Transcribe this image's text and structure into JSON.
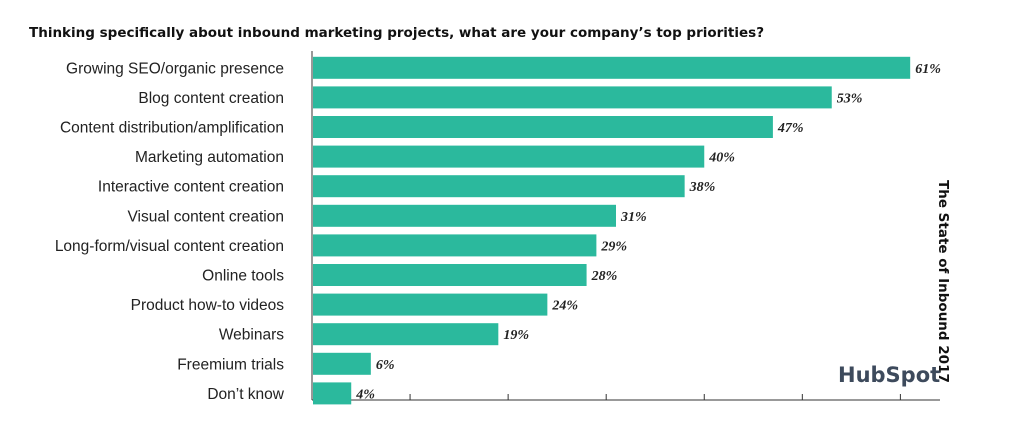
{
  "chart_data": {
    "type": "bar",
    "orientation": "horizontal",
    "title": "Thinking specifically about inbound marketing projects, what are your company’s top priorities?",
    "categories": [
      "Growing SEO/organic presence",
      "Blog content creation",
      "Content distribution/amplification",
      "Marketing automation",
      "Interactive content creation",
      "Visual content creation",
      "Long-form/visual content creation",
      "Online tools",
      "Product how-to videos",
      "Webinars",
      "Freemium trials",
      "Don’t know"
    ],
    "values": [
      61,
      53,
      47,
      40,
      38,
      31,
      29,
      28,
      24,
      19,
      6,
      4
    ],
    "value_labels": [
      "61%",
      "53%",
      "47%",
      "40%",
      "38%",
      "31%",
      "29%",
      "28%",
      "24%",
      "19%",
      "6%",
      "4%"
    ],
    "xlim": [
      0,
      62
    ],
    "xticks": [
      0,
      10,
      20,
      30,
      40,
      50,
      60
    ],
    "bar_color": "#2bb99d",
    "grid": false,
    "source": "The State of Inbound 2017",
    "logo_text": "HubSpot"
  }
}
